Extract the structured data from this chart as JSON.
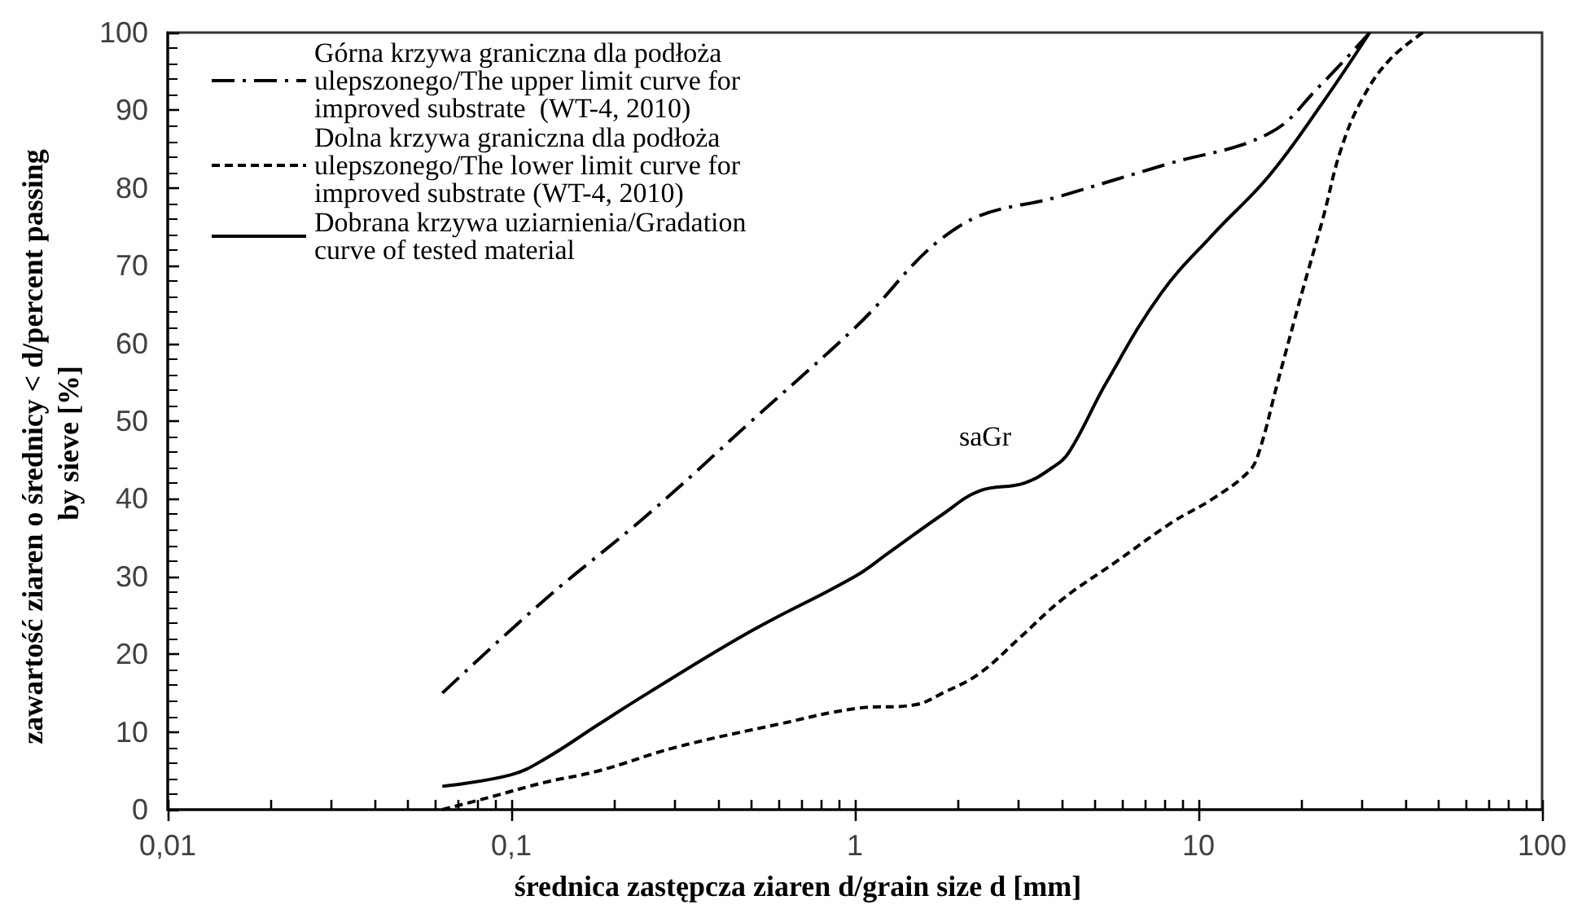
{
  "chart_data": {
    "type": "line",
    "xlabel": "średnica zastępcza ziaren d/grain size d [mm]",
    "ylabel": "zawartość ziaren o średnicy < d/percent passing by sieve [%]",
    "log": "x",
    "xlim": [
      0.01,
      100
    ],
    "xticks": [
      {
        "value": 0.01,
        "label": "0,01"
      },
      {
        "value": 0.02,
        "label": null
      },
      {
        "value": 0.03,
        "label": null
      },
      {
        "value": 0.04,
        "label": null
      },
      {
        "value": 0.05,
        "label": null
      },
      {
        "value": 0.06,
        "label": null
      },
      {
        "value": 0.07,
        "label": null
      },
      {
        "value": 0.08,
        "label": null
      },
      {
        "value": 0.09,
        "label": null
      },
      {
        "value": 0.1,
        "label": "0,1"
      },
      {
        "value": 0.2,
        "label": null
      },
      {
        "value": 0.3,
        "label": null
      },
      {
        "value": 0.4,
        "label": null
      },
      {
        "value": 0.5,
        "label": null
      },
      {
        "value": 0.6,
        "label": null
      },
      {
        "value": 0.7,
        "label": null
      },
      {
        "value": 0.8,
        "label": null
      },
      {
        "value": 0.9,
        "label": null
      },
      1,
      {
        "value": 2,
        "label": null
      },
      {
        "value": 3,
        "label": null
      },
      {
        "value": 4,
        "label": null
      },
      {
        "value": 5,
        "label": null
      },
      {
        "value": 6,
        "label": null
      },
      {
        "value": 7,
        "label": null
      },
      {
        "value": 8,
        "label": null
      },
      {
        "value": 9,
        "label": null
      },
      10,
      {
        "value": 20,
        "label": null
      },
      {
        "value": 30,
        "label": null
      },
      {
        "value": 40,
        "label": null
      },
      {
        "value": 50,
        "label": null
      },
      {
        "value": 60,
        "label": null
      },
      {
        "value": 70,
        "label": null
      },
      {
        "value": 80,
        "label": null
      },
      {
        "value": 90,
        "label": null
      },
      100
    ],
    "ylim": [
      0,
      100
    ],
    "yticks": [
      0,
      10,
      20,
      30,
      40,
      50,
      60,
      70,
      80,
      90,
      100
    ],
    "grid": false,
    "legend": "top left",
    "marker": "none",
    "series": [
      {
        "name": "Górna krzywa graniczna dla podłoża ulepszonego/The upper limit curve for improved substrate  (WT-4, 2010)",
        "color": "#000000",
        "line_style": "dashdot",
        "x": [
          0.063,
          0.125,
          0.25,
          0.5,
          1,
          2,
          4,
          8,
          16,
          22.4,
          31.5
        ],
        "values": [
          15,
          27,
          38,
          50,
          62,
          75,
          79,
          83,
          87,
          93,
          100
        ]
      },
      {
        "name": "Dolna krzywa graniczna dla podłoża ulepszonego/The lower limit curve for improved substrate (WT-4, 2010)",
        "color": "#000000",
        "line_style": "dashed",
        "x": [
          0.063,
          0.085,
          0.125,
          0.18,
          0.3,
          0.6,
          1,
          1.5,
          1.8,
          2.3,
          3,
          4,
          5.8,
          8.4,
          11,
          14,
          15,
          17,
          20,
          23,
          26,
          30,
          36,
          45
        ],
        "values": [
          0,
          1.5,
          3.5,
          5,
          8,
          11,
          13,
          13.5,
          15,
          17.5,
          22,
          27,
          32,
          37,
          40,
          43.5,
          46,
          55,
          66.5,
          76,
          85,
          91.5,
          96.5,
          100
        ]
      },
      {
        "name": "Dobrana krzywa uziarnienia/Gradation curve of tested material",
        "color": "#000000",
        "line_style": "solid",
        "x": [
          0.063,
          0.1,
          0.125,
          0.18,
          0.25,
          0.5,
          1,
          1.25,
          1.8,
          2.3,
          3.1,
          3.75,
          4.2,
          5.4,
          7.8,
          11,
          16,
          23,
          31.5
        ],
        "values": [
          3,
          4.5,
          6.5,
          11,
          15,
          23,
          30,
          33,
          38,
          41,
          42,
          44,
          46,
          55,
          66.5,
          74,
          81.5,
          91,
          100
        ]
      }
    ],
    "annotations": [
      "saGr"
    ]
  }
}
